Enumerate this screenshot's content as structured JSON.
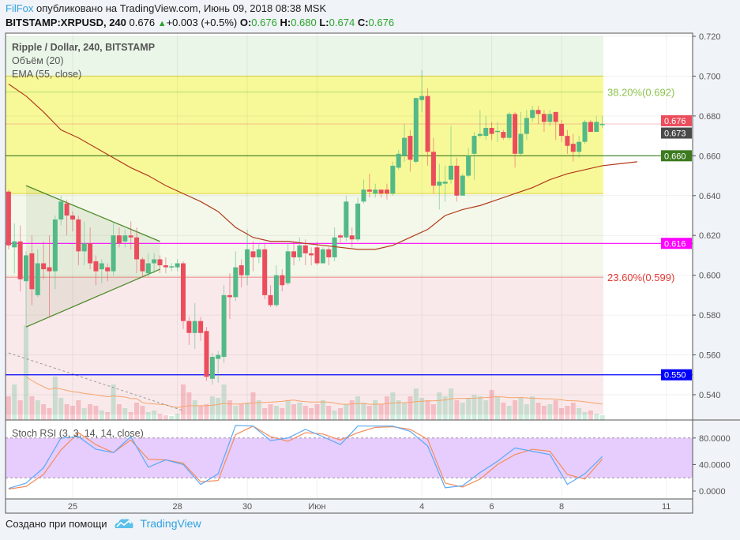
{
  "header": {
    "author": "FilFox",
    "published_text": "опубликовано на TradingView.com, Июнь 09, 2018 08:38 MSK",
    "symbol": "BITSTAMP:XRPUSD, 240",
    "last": "0.676",
    "change": "+0.003 (+0.5%)",
    "o_label": "O:",
    "o": "0.676",
    "h_label": "H:",
    "h": "0.680",
    "l_label": "L:",
    "l": "0.674",
    "c_label": "C:",
    "c": "0.676"
  },
  "legend": {
    "title": "Ripple / Dollar, 240, BITSTAMP",
    "volume": "Объём (20)",
    "ema": "EMA (55, close)",
    "stoch": "Stoch RSI (3, 3, 14, 14, close)"
  },
  "footer": {
    "text": "Создано при помощи",
    "brand": "TradingView"
  },
  "colors": {
    "up": "#53b987",
    "down": "#eb4d5c",
    "ema": "#b23a1a",
    "stoch_k": "#5aa9f5",
    "stoch_d": "#f58c5a",
    "accent": "#2fa2e0"
  },
  "chart_data": {
    "type": "candlestick",
    "interval": "240",
    "first_bar": "2018-05-23 04:00",
    "ylim": [
      0.53,
      0.72
    ],
    "y_ticks": [
      "0.720",
      "0.700",
      "0.680",
      "0.660",
      "0.640",
      "0.620",
      "0.600",
      "0.580",
      "0.560",
      "0.540"
    ],
    "x_ticks": [
      {
        "date": "05-25 00:00",
        "label": "25"
      },
      {
        "date": "05-28 00:00",
        "label": "28"
      },
      {
        "date": "05-30 00:00",
        "label": "30"
      },
      {
        "date": "06-01 00:00",
        "label": "Июн"
      },
      {
        "date": "06-04 00:00",
        "label": "4"
      },
      {
        "date": "06-06 00:00",
        "label": "6"
      },
      {
        "date": "06-08 00:00",
        "label": "8"
      },
      {
        "date": "06-11 00:00",
        "label": "11"
      }
    ],
    "grid": true,
    "candles_ohlc": [
      [
        0.642,
        0.643,
        0.613,
        0.615
      ],
      [
        0.614,
        0.626,
        0.601,
        0.617
      ],
      [
        0.617,
        0.625,
        0.592,
        0.598
      ],
      [
        0.597,
        0.612,
        0.575,
        0.61
      ],
      [
        0.611,
        0.62,
        0.585,
        0.593
      ],
      [
        0.59,
        0.613,
        0.589,
        0.606
      ],
      [
        0.606,
        0.617,
        0.598,
        0.603
      ],
      [
        0.604,
        0.62,
        0.579,
        0.602
      ],
      [
        0.602,
        0.63,
        0.593,
        0.628
      ],
      [
        0.628,
        0.64,
        0.625,
        0.637
      ],
      [
        0.636,
        0.638,
        0.62,
        0.63
      ],
      [
        0.63,
        0.632,
        0.622,
        0.628
      ],
      [
        0.628,
        0.63,
        0.605,
        0.612
      ],
      [
        0.612,
        0.627,
        0.605,
        0.616
      ],
      [
        0.616,
        0.624,
        0.603,
        0.606
      ],
      [
        0.607,
        0.61,
        0.595,
        0.602
      ],
      [
        0.603,
        0.608,
        0.596,
        0.606
      ],
      [
        0.604,
        0.606,
        0.597,
        0.602
      ],
      [
        0.602,
        0.627,
        0.6,
        0.62
      ],
      [
        0.62,
        0.624,
        0.614,
        0.616
      ],
      [
        0.617,
        0.623,
        0.614,
        0.62
      ],
      [
        0.62,
        0.627,
        0.613,
        0.619
      ],
      [
        0.619,
        0.624,
        0.601,
        0.608
      ],
      [
        0.608,
        0.609,
        0.599,
        0.602
      ],
      [
        0.601,
        0.611,
        0.599,
        0.606
      ],
      [
        0.606,
        0.611,
        0.601,
        0.608
      ],
      [
        0.608,
        0.61,
        0.601,
        0.605
      ],
      [
        0.605,
        0.609,
        0.601,
        0.604
      ],
      [
        0.604,
        0.606,
        0.602,
        0.6045
      ],
      [
        0.604,
        0.608,
        0.602,
        0.606
      ],
      [
        0.606,
        0.607,
        0.573,
        0.577
      ],
      [
        0.577,
        0.579,
        0.565,
        0.571
      ],
      [
        0.571,
        0.586,
        0.563,
        0.577
      ],
      [
        0.577,
        0.579,
        0.567,
        0.571
      ],
      [
        0.572,
        0.574,
        0.547,
        0.549
      ],
      [
        0.548,
        0.561,
        0.545,
        0.559
      ],
      [
        0.558,
        0.562,
        0.546,
        0.56
      ],
      [
        0.559,
        0.595,
        0.556,
        0.59
      ],
      [
        0.59,
        0.601,
        0.578,
        0.589
      ],
      [
        0.589,
        0.612,
        0.587,
        0.604
      ],
      [
        0.605,
        0.608,
        0.594,
        0.6
      ],
      [
        0.6,
        0.623,
        0.595,
        0.613
      ],
      [
        0.612,
        0.617,
        0.602,
        0.609
      ],
      [
        0.609,
        0.616,
        0.606,
        0.613
      ],
      [
        0.613,
        0.616,
        0.588,
        0.59
      ],
      [
        0.59,
        0.595,
        0.584,
        0.585
      ],
      [
        0.585,
        0.605,
        0.584,
        0.6
      ],
      [
        0.6,
        0.603,
        0.592,
        0.595
      ],
      [
        0.596,
        0.616,
        0.595,
        0.612
      ],
      [
        0.612,
        0.617,
        0.605,
        0.609
      ],
      [
        0.609,
        0.619,
        0.607,
        0.615
      ],
      [
        0.615,
        0.618,
        0.605,
        0.611
      ],
      [
        0.611,
        0.614,
        0.605,
        0.61
      ],
      [
        0.614,
        0.617,
        0.605,
        0.606
      ],
      [
        0.606,
        0.614,
        0.606,
        0.613
      ],
      [
        0.613,
        0.614,
        0.605,
        0.609
      ],
      [
        0.609,
        0.624,
        0.607,
        0.619
      ],
      [
        0.62,
        0.621,
        0.616,
        0.619
      ],
      [
        0.619,
        0.64,
        0.617,
        0.637
      ],
      [
        0.62,
        0.624,
        0.614,
        0.618
      ],
      [
        0.618,
        0.639,
        0.617,
        0.636
      ],
      [
        0.637,
        0.648,
        0.636,
        0.643
      ],
      [
        0.643,
        0.651,
        0.639,
        0.642
      ],
      [
        0.641,
        0.646,
        0.639,
        0.643
      ],
      [
        0.643,
        0.643,
        0.639,
        0.641
      ],
      [
        0.643,
        0.646,
        0.638,
        0.641
      ],
      [
        0.641,
        0.657,
        0.64,
        0.655
      ],
      [
        0.654,
        0.663,
        0.653,
        0.661
      ],
      [
        0.66,
        0.676,
        0.657,
        0.669
      ],
      [
        0.67,
        0.673,
        0.652,
        0.658
      ],
      [
        0.657,
        0.689,
        0.656,
        0.689
      ],
      [
        0.688,
        0.703,
        0.682,
        0.69
      ],
      [
        0.69,
        0.694,
        0.655,
        0.662
      ],
      [
        0.662,
        0.669,
        0.641,
        0.645
      ],
      [
        0.645,
        0.656,
        0.633,
        0.647
      ],
      [
        0.646,
        0.655,
        0.637,
        0.647
      ],
      [
        0.648,
        0.675,
        0.646,
        0.655
      ],
      [
        0.655,
        0.659,
        0.637,
        0.64
      ],
      [
        0.64,
        0.651,
        0.64,
        0.65
      ],
      [
        0.65,
        0.664,
        0.649,
        0.66
      ],
      [
        0.661,
        0.672,
        0.648,
        0.67
      ],
      [
        0.67,
        0.683,
        0.669,
        0.671
      ],
      [
        0.67,
        0.68,
        0.668,
        0.674
      ],
      [
        0.674,
        0.677,
        0.668,
        0.671
      ],
      [
        0.672,
        0.677,
        0.667,
        0.6725
      ],
      [
        0.672,
        0.673,
        0.668,
        0.669
      ],
      [
        0.669,
        0.682,
        0.668,
        0.681
      ],
      [
        0.681,
        0.682,
        0.654,
        0.661
      ],
      [
        0.661,
        0.682,
        0.66,
        0.671
      ],
      [
        0.671,
        0.683,
        0.668,
        0.679
      ],
      [
        0.679,
        0.685,
        0.677,
        0.683
      ],
      [
        0.683,
        0.685,
        0.676,
        0.681
      ],
      [
        0.681,
        0.683,
        0.672,
        0.677
      ],
      [
        0.677,
        0.683,
        0.675,
        0.681
      ],
      [
        0.682,
        0.682,
        0.668,
        0.677
      ],
      [
        0.676,
        0.678,
        0.667,
        0.67
      ],
      [
        0.67,
        0.673,
        0.661,
        0.665
      ],
      [
        0.666,
        0.671,
        0.657,
        0.662
      ],
      [
        0.662,
        0.67,
        0.659,
        0.667
      ],
      [
        0.667,
        0.678,
        0.666,
        0.677
      ],
      [
        0.677,
        0.678,
        0.672,
        0.672
      ],
      [
        0.672,
        0.68,
        0.672,
        0.677
      ],
      [
        0.676,
        0.68,
        0.674,
        0.676
      ]
    ],
    "volume": [
      30,
      45,
      25,
      120,
      30,
      25,
      20,
      15,
      55,
      28,
      20,
      18,
      25,
      15,
      20,
      18,
      12,
      10,
      45,
      20,
      15,
      10,
      22,
      18,
      10,
      12,
      8,
      6,
      5,
      8,
      45,
      35,
      25,
      18,
      20,
      30,
      28,
      45,
      25,
      18,
      20,
      22,
      35,
      25,
      15,
      20,
      18,
      15,
      25,
      20,
      22,
      18,
      15,
      20,
      25,
      18,
      12,
      15,
      20,
      25,
      30,
      22,
      18,
      25,
      20,
      30,
      35,
      25,
      22,
      30,
      40,
      28,
      25,
      20,
      35,
      30,
      40,
      25,
      22,
      28,
      32,
      30,
      25,
      38,
      30,
      22,
      18,
      25,
      28,
      20,
      30,
      22,
      18,
      20,
      25,
      15,
      18,
      22,
      15,
      10,
      12,
      8,
      6
    ],
    "ema_55": [
      [
        "05-23 04:00",
        0.696
      ],
      [
        "05-23 16:00",
        0.69
      ],
      [
        "05-24 04:00",
        0.682
      ],
      [
        "05-24 16:00",
        0.673
      ],
      [
        "05-25 04:00",
        0.669
      ],
      [
        "05-25 16:00",
        0.664
      ],
      [
        "05-26 04:00",
        0.659
      ],
      [
        "05-26 16:00",
        0.654
      ],
      [
        "05-27 04:00",
        0.65
      ],
      [
        "05-27 16:00",
        0.645
      ],
      [
        "05-28 04:00",
        0.641
      ],
      [
        "05-28 16:00",
        0.637
      ],
      [
        "05-29 04:00",
        0.632
      ],
      [
        "05-29 16:00",
        0.624
      ],
      [
        "05-30 04:00",
        0.619
      ],
      [
        "05-30 16:00",
        0.617
      ],
      [
        "05-31 04:00",
        0.617
      ],
      [
        "05-31 16:00",
        0.616
      ],
      [
        "06-01 04:00",
        0.615
      ],
      [
        "06-01 16:00",
        0.614
      ],
      [
        "06-02 04:00",
        0.613
      ],
      [
        "06-02 16:00",
        0.613
      ],
      [
        "06-03 04:00",
        0.615
      ],
      [
        "06-03 16:00",
        0.619
      ],
      [
        "06-04 04:00",
        0.623
      ],
      [
        "06-04 16:00",
        0.63
      ],
      [
        "06-05 04:00",
        0.633
      ],
      [
        "06-05 16:00",
        0.635
      ],
      [
        "06-06 04:00",
        0.638
      ],
      [
        "06-06 16:00",
        0.641
      ],
      [
        "06-07 04:00",
        0.644
      ],
      [
        "06-07 16:00",
        0.648
      ],
      [
        "06-08 04:00",
        0.651
      ],
      [
        "06-08 16:00",
        0.653
      ],
      [
        "06-09 04:00",
        0.655
      ],
      [
        "06-09 16:00",
        0.656
      ],
      [
        "06-10 04:00",
        0.657
      ]
    ],
    "levels": [
      {
        "price": 0.66,
        "color": "#3b7a1e",
        "label": "0.660"
      },
      {
        "price": 0.616,
        "color": "#ff00ff",
        "label": "0.616"
      },
      {
        "price": 0.55,
        "color": "#0000ff",
        "label": "0.550"
      }
    ],
    "price_labels": [
      {
        "price": 0.676,
        "label": "0.676",
        "color": "#eb4d5c"
      },
      {
        "price": 0.673,
        "label": "0.673",
        "color": "#4a4a4a"
      }
    ],
    "fibonacci": [
      {
        "label": "38.20%(0.692)",
        "price": 0.692,
        "color": "#8bc34a"
      },
      {
        "label": "23.60%(0.599)",
        "price": 0.599,
        "color": "#e53935"
      }
    ],
    "fib_zones": [
      {
        "from": 0.7,
        "to": 0.72,
        "color": "#eaf6e8"
      },
      {
        "from": 0.641,
        "to": 0.7,
        "color": "#f7f999"
      },
      {
        "from": 0.599,
        "to": 0.641,
        "color": "#f3f8eb"
      },
      {
        "from": 0.53,
        "to": 0.599,
        "color": "#f9e9ea"
      }
    ],
    "triangle": {
      "upper": [
        [
          "05-23 16:00",
          0.645
        ],
        [
          "05-27 12:00",
          0.617
        ]
      ],
      "lower": [
        [
          "05-23 16:00",
          0.574
        ],
        [
          "05-27 12:00",
          0.603
        ]
      ]
    },
    "trendline_dashed": [
      [
        "05-23 04:00",
        0.561
      ],
      [
        "05-28 04:00",
        0.532
      ]
    ],
    "stoch_rsi": {
      "ylim": [
        0,
        100
      ],
      "y_ticks": [
        "80.0000",
        "40.0000",
        "0.0000"
      ],
      "band": [
        20,
        80
      ],
      "k": [
        [
          "05-23 04:00",
          4
        ],
        [
          "05-23 16:00",
          12
        ],
        [
          "05-24 04:00",
          35
        ],
        [
          "05-24 16:00",
          80
        ],
        [
          "05-25 04:00",
          82
        ],
        [
          "05-25 16:00",
          63
        ],
        [
          "05-26 04:00",
          58
        ],
        [
          "05-26 16:00",
          82
        ],
        [
          "05-27 04:00",
          36
        ],
        [
          "05-27 16:00",
          47
        ],
        [
          "05-28 04:00",
          40
        ],
        [
          "05-28 16:00",
          10
        ],
        [
          "05-29 04:00",
          26
        ],
        [
          "05-29 16:00",
          99
        ],
        [
          "05-30 04:00",
          98
        ],
        [
          "05-30 16:00",
          76
        ],
        [
          "05-31 04:00",
          80
        ],
        [
          "05-31 16:00",
          93
        ],
        [
          "06-01 04:00",
          82
        ],
        [
          "06-01 16:00",
          70
        ],
        [
          "06-02 04:00",
          98
        ],
        [
          "06-02 16:00",
          98
        ],
        [
          "06-03 04:00",
          98
        ],
        [
          "06-03 16:00",
          90
        ],
        [
          "06-04 04:00",
          68
        ],
        [
          "06-04 16:00",
          5
        ],
        [
          "06-05 04:00",
          8
        ],
        [
          "06-05 16:00",
          28
        ],
        [
          "06-06 04:00",
          45
        ],
        [
          "06-06 16:00",
          65
        ],
        [
          "06-07 04:00",
          60
        ],
        [
          "06-07 16:00",
          55
        ],
        [
          "06-08 04:00",
          10
        ],
        [
          "06-08 16:00",
          26
        ],
        [
          "06-09 04:00",
          52
        ]
      ],
      "d": [
        [
          "05-23 04:00",
          3
        ],
        [
          "05-23 16:00",
          7
        ],
        [
          "05-24 04:00",
          25
        ],
        [
          "05-24 16:00",
          62
        ],
        [
          "05-25 04:00",
          88
        ],
        [
          "05-25 16:00",
          70
        ],
        [
          "05-26 04:00",
          58
        ],
        [
          "05-26 16:00",
          77
        ],
        [
          "05-27 04:00",
          48
        ],
        [
          "05-27 16:00",
          47
        ],
        [
          "05-28 04:00",
          42
        ],
        [
          "05-28 16:00",
          14
        ],
        [
          "05-29 04:00",
          16
        ],
        [
          "05-29 16:00",
          85
        ],
        [
          "05-30 04:00",
          98
        ],
        [
          "05-30 16:00",
          82
        ],
        [
          "05-31 04:00",
          75
        ],
        [
          "05-31 16:00",
          88
        ],
        [
          "06-01 04:00",
          86
        ],
        [
          "06-01 16:00",
          77
        ],
        [
          "06-02 04:00",
          88
        ],
        [
          "06-02 16:00",
          96
        ],
        [
          "06-03 04:00",
          97
        ],
        [
          "06-03 16:00",
          93
        ],
        [
          "06-04 04:00",
          78
        ],
        [
          "06-04 16:00",
          12
        ],
        [
          "06-05 04:00",
          6
        ],
        [
          "06-05 16:00",
          18
        ],
        [
          "06-06 04:00",
          40
        ],
        [
          "06-06 16:00",
          55
        ],
        [
          "06-07 04:00",
          63
        ],
        [
          "06-07 16:00",
          60
        ],
        [
          "06-08 04:00",
          25
        ],
        [
          "06-08 16:00",
          18
        ],
        [
          "06-09 04:00",
          48
        ]
      ]
    }
  }
}
